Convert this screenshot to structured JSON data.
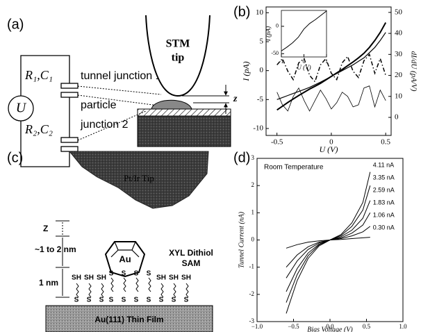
{
  "panel_labels": [
    "(a)",
    "(b)",
    "(c)",
    "(d)"
  ],
  "diagram_a": {
    "source": "U",
    "rc1": "R₁,C₁",
    "rc2": "R₂,C₂",
    "tunnel_junction": "tunnel junction 1",
    "particle": "particle",
    "junction_2": "junction 2",
    "tip_line1": "STM",
    "tip_line2": "tip",
    "gap": "z"
  },
  "diagram_c": {
    "tip": "Pt/Ir Tip",
    "gap": "Z",
    "distance": "~1 to 2 nm",
    "sam_height": "1 nm",
    "cluster": "Au",
    "sam_line1": "XYL Dithiol",
    "sam_line2": "SAM",
    "thiol_top": "SH",
    "thiol_bottom": "S",
    "substrate": "Au(111) Thin Film"
  },
  "chart_data": [
    {
      "type": "line",
      "y_label": "I (pA)",
      "y2_label": "dI/dU (pA/V)",
      "x_label": "U (V)",
      "x": [
        -0.5,
        -0.45,
        -0.4,
        -0.35,
        -0.3,
        -0.25,
        -0.2,
        -0.15,
        -0.1,
        -0.05,
        0,
        0.05,
        0.1,
        0.15,
        0.2,
        0.25,
        0.3,
        0.35,
        0.4,
        0.45,
        0.5
      ],
      "xlim": [
        -0.6,
        0.55
      ],
      "xticks": [
        -0.5,
        0,
        0.5
      ],
      "ylim": [
        -11.2,
        11
      ],
      "yticks": [
        -10,
        -5,
        0,
        5,
        10
      ],
      "y2lim": [
        -8.6,
        52.6
      ],
      "y2ticks": [
        0,
        10,
        20,
        30,
        40,
        50
      ],
      "series": [
        {
          "color": "#000000",
          "line_width": 2,
          "dash": "solid",
          "values": [
            -6.8,
            -6.15,
            -5.5,
            -4.9,
            -4.3,
            -3.75,
            -3.2,
            -2.7,
            -2.2,
            -1.6,
            -1,
            -0.4,
            0.2,
            0.85,
            1.5,
            2.2,
            3,
            4,
            5.2,
            6.6,
            8.3
          ]
        },
        {
          "color": "#000000",
          "line_width": 1.2,
          "dash": "solid",
          "values": [
            -5,
            -4.65,
            -4.3,
            -3.95,
            -3.6,
            -3.25,
            -2.9,
            -2.45,
            -2,
            -1.5,
            -1,
            -0.5,
            0,
            0.5,
            1,
            1.6,
            2.2,
            3.1,
            4,
            5.2,
            6.6
          ]
        },
        {
          "color": "#000000",
          "line_width": 1.5,
          "dash": "dash-dot",
          "axis": "y2",
          "values": [
            25,
            28,
            22,
            18,
            26,
            28,
            20,
            17,
            25,
            28,
            21,
            18,
            26,
            29,
            22,
            19,
            27,
            30,
            21,
            28,
            20
          ]
        },
        {
          "color": "#000000",
          "line_width": 0.8,
          "dash": "solid",
          "axis": "y2",
          "values": [
            12,
            6,
            3,
            10,
            14,
            8,
            3,
            8,
            13,
            9,
            4,
            7,
            12,
            10,
            5,
            6,
            14,
            15,
            5,
            13,
            8
          ]
        }
      ]
    },
    {
      "type": "line",
      "y_label": "I (pA)",
      "x_label": "U (V)",
      "x": [
        -1,
        -0.75,
        -0.5,
        -0.25,
        0,
        0.25,
        0.5,
        0.75,
        1
      ],
      "xlim": [
        -1,
        1
      ],
      "xticks": [
        -1,
        0,
        1
      ],
      "ylim": [
        -56,
        29
      ],
      "yticks": [
        -50,
        0
      ],
      "series": [
        {
          "color": "#000000",
          "line_width": 1,
          "dash": "solid",
          "values": [
            -45,
            -38,
            -30,
            -20,
            -5,
            5,
            12,
            20,
            28
          ]
        }
      ]
    },
    {
      "type": "line",
      "y_label": "Tunnel Current (nA)",
      "x_label": "Bias Voltage (V)",
      "annotation": "Room Temperature",
      "x": [
        -0.6,
        -0.45,
        -0.3,
        -0.15,
        0,
        0.15,
        0.3,
        0.45,
        0.55
      ],
      "xlim": [
        -1,
        1
      ],
      "xticks": [
        {
          "value": -1,
          "label": "−1.0"
        },
        {
          "value": -0.5,
          "label": "−0.5"
        },
        {
          "value": 0,
          "label": "0.0"
        },
        {
          "value": 0.5,
          "label": "0.5"
        },
        {
          "value": 1,
          "label": "1.0"
        }
      ],
      "ylim": [
        -3,
        3
      ],
      "yticks": [
        -3,
        -2,
        -1,
        0,
        1,
        2,
        3
      ],
      "series": [
        {
          "name": "4.11 nA",
          "color": "#000000",
          "line_width": 1,
          "dash": "solid",
          "values": [
            -2.7,
            -1.49,
            -0.68,
            -0.22,
            0,
            0.2,
            0.63,
            1.38,
            2.5
          ]
        },
        {
          "name": "3.35 nA",
          "color": "#000000",
          "line_width": 1,
          "dash": "solid",
          "values": [
            -2.3,
            -1.27,
            -0.58,
            -0.18,
            0,
            0.16,
            0.5,
            1.1,
            2.0
          ]
        },
        {
          "name": "2.59 nA",
          "color": "#000000",
          "line_width": 1,
          "dash": "solid",
          "values": [
            -1.9,
            -1.05,
            -0.48,
            -0.15,
            0,
            0.12,
            0.36,
            0.8,
            1.45
          ]
        },
        {
          "name": "1.83 nA",
          "color": "#000000",
          "line_width": 1,
          "dash": "solid",
          "values": [
            -1.4,
            -0.77,
            -0.35,
            -0.11,
            0,
            0.08,
            0.25,
            0.55,
            1.0
          ]
        },
        {
          "name": "1.06 nA",
          "color": "#000000",
          "line_width": 1,
          "dash": "solid",
          "values": [
            -1.0,
            -0.55,
            -0.25,
            -0.08,
            0,
            0.05,
            0.15,
            0.3,
            0.5
          ]
        },
        {
          "name": "0.30 nA",
          "color": "#000000",
          "line_width": 1,
          "dash": "solid",
          "values": [
            -0.3,
            -0.17,
            -0.08,
            -0.03,
            0,
            0.02,
            0.05,
            0.08,
            0.1
          ]
        }
      ]
    }
  ]
}
